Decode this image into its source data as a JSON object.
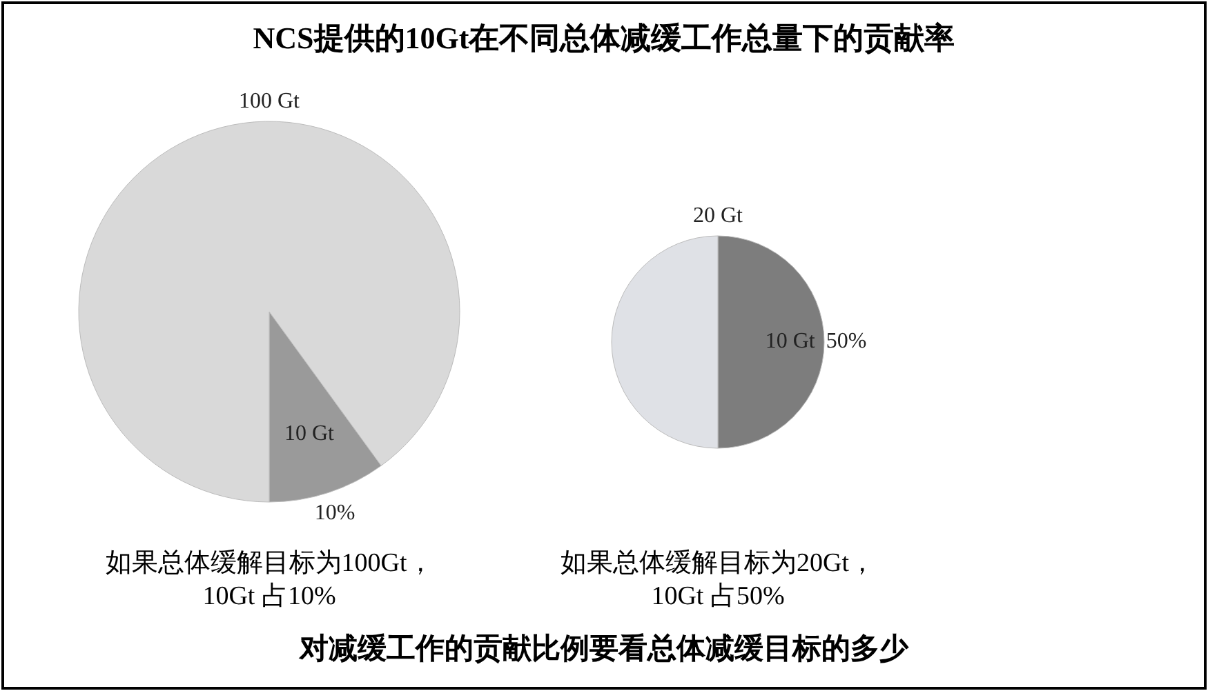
{
  "chart_data": [
    {
      "type": "pie",
      "title": "NCS提供的10Gt在不同总体减缓工作总量下的贡献率",
      "subtitle": "100 Gt",
      "categories": [
        "10 Gt",
        null
      ],
      "values": [
        10,
        90
      ],
      "colors": [
        "#9a9a9a",
        "#d9d9d9"
      ],
      "value_labels": [
        "10%",
        null
      ],
      "annotations": [
        "如果总体缓解目标为100Gt，\n10Gt 占10%"
      ]
    },
    {
      "type": "pie",
      "subtitle": "20 Gt",
      "categories": [
        "10 Gt",
        null
      ],
      "values": [
        50,
        50
      ],
      "colors": [
        "#7d7d7d",
        "#dfe1e6"
      ],
      "value_labels": [
        "50%",
        null
      ],
      "annotations": [
        "如果总体缓解目标为20Gt，\n10Gt 占50%",
        "对减缓工作的贡献比例要看总体减缓目标的多少"
      ]
    }
  ]
}
